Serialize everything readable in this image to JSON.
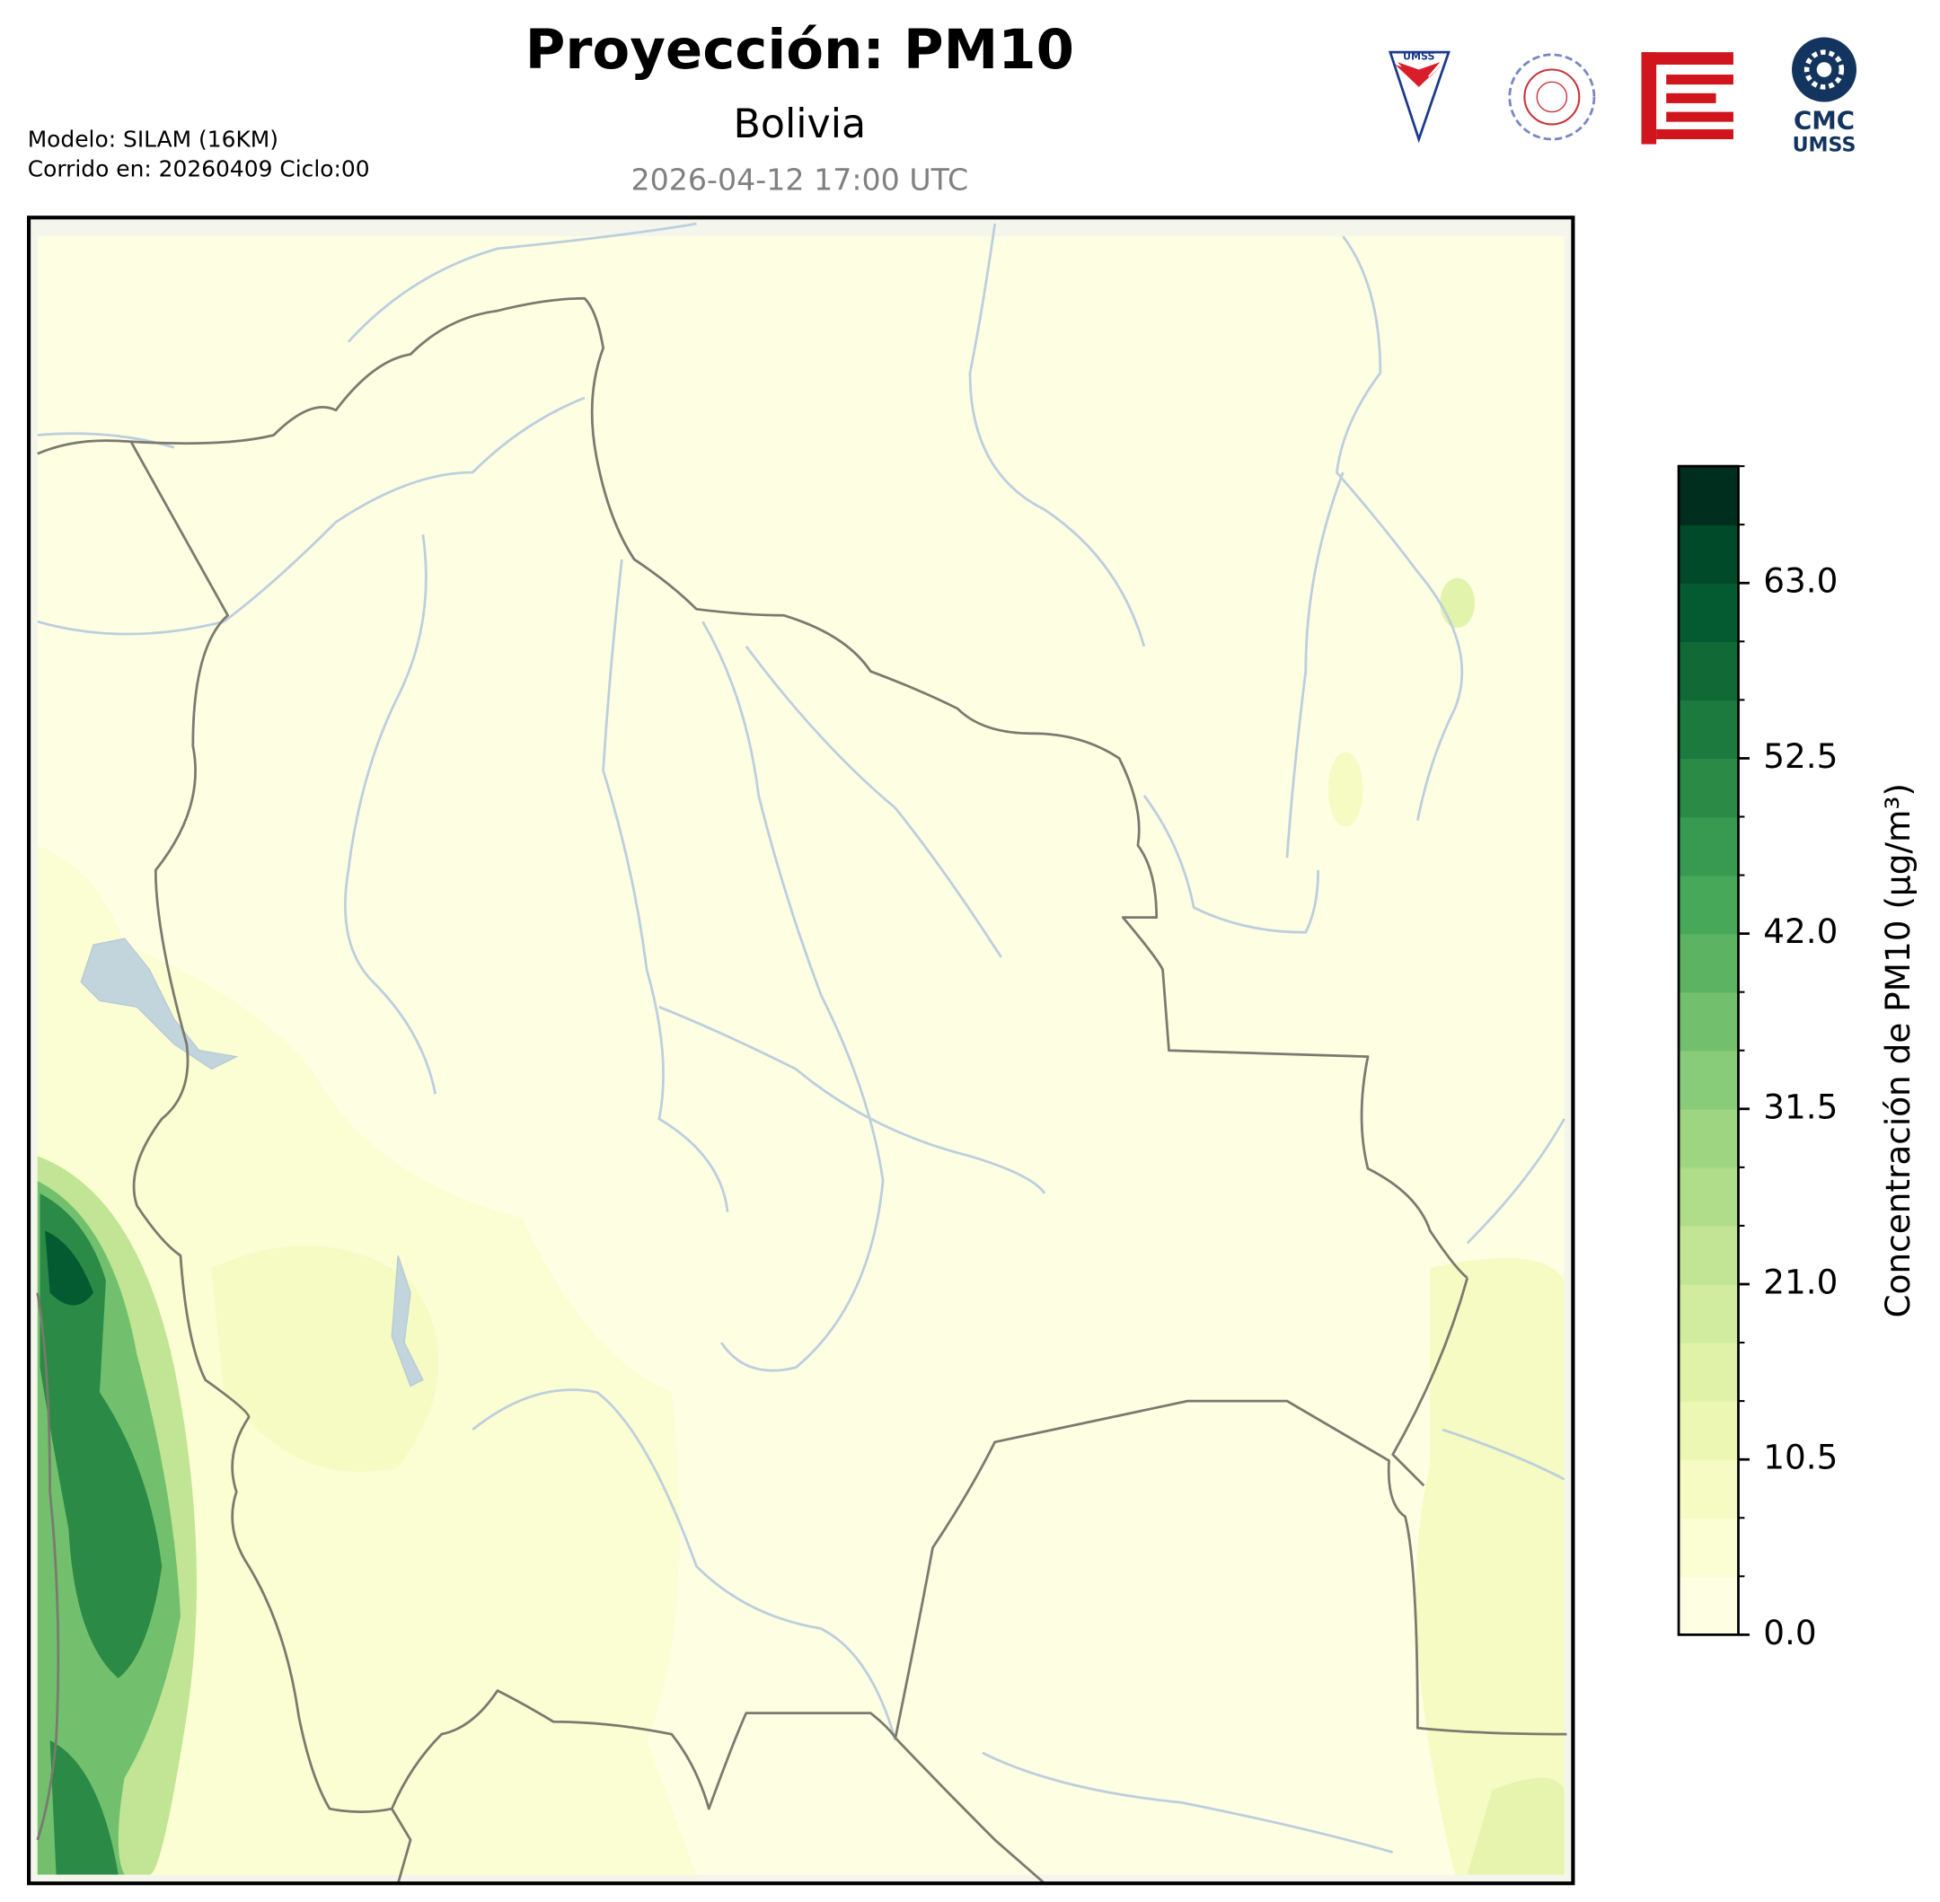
{
  "header": {
    "title": "Proyección: PM10",
    "subtitle": "Bolivia",
    "valid_time": "2026-04-12 17:00 UTC",
    "model": "Modelo: SILAM (16KM)",
    "run": "Corrido en: 20260409 Ciclo:00",
    "logos": [
      "UMSS",
      "CMC",
      "UMSS"
    ]
  },
  "colorbar": {
    "label": "Concentración de PM10 (µg/m³)",
    "lim": [
      0,
      70
    ],
    "ticks": [
      {
        "value": 0,
        "label": "0.0"
      },
      10.5,
      {
        "value": 21,
        "label": "21.0"
      },
      31.5,
      {
        "value": 42,
        "label": "42.0"
      },
      52.5,
      {
        "value": 63,
        "label": "63.0"
      }
    ],
    "levels": [
      0,
      3.5,
      7,
      10.5,
      14,
      17.5,
      21,
      24.5,
      28,
      31.5,
      35,
      38.5,
      42,
      45.5,
      49,
      52.5,
      56,
      59.5,
      63,
      66.5,
      70
    ],
    "colors": [
      "#fefee3",
      "#fbfdd2",
      "#f5fbc3",
      "#ecf7b4",
      "#dff2a8",
      "#d1ec9e",
      "#c1e594",
      "#afdd8a",
      "#9dd581",
      "#88cb78",
      "#72c06d",
      "#5cb462",
      "#47a859",
      "#379a50",
      "#2a8a46",
      "#1d7a3e",
      "#116a36",
      "#045b31",
      "#004a29",
      "#002e1e"
    ]
  }
}
